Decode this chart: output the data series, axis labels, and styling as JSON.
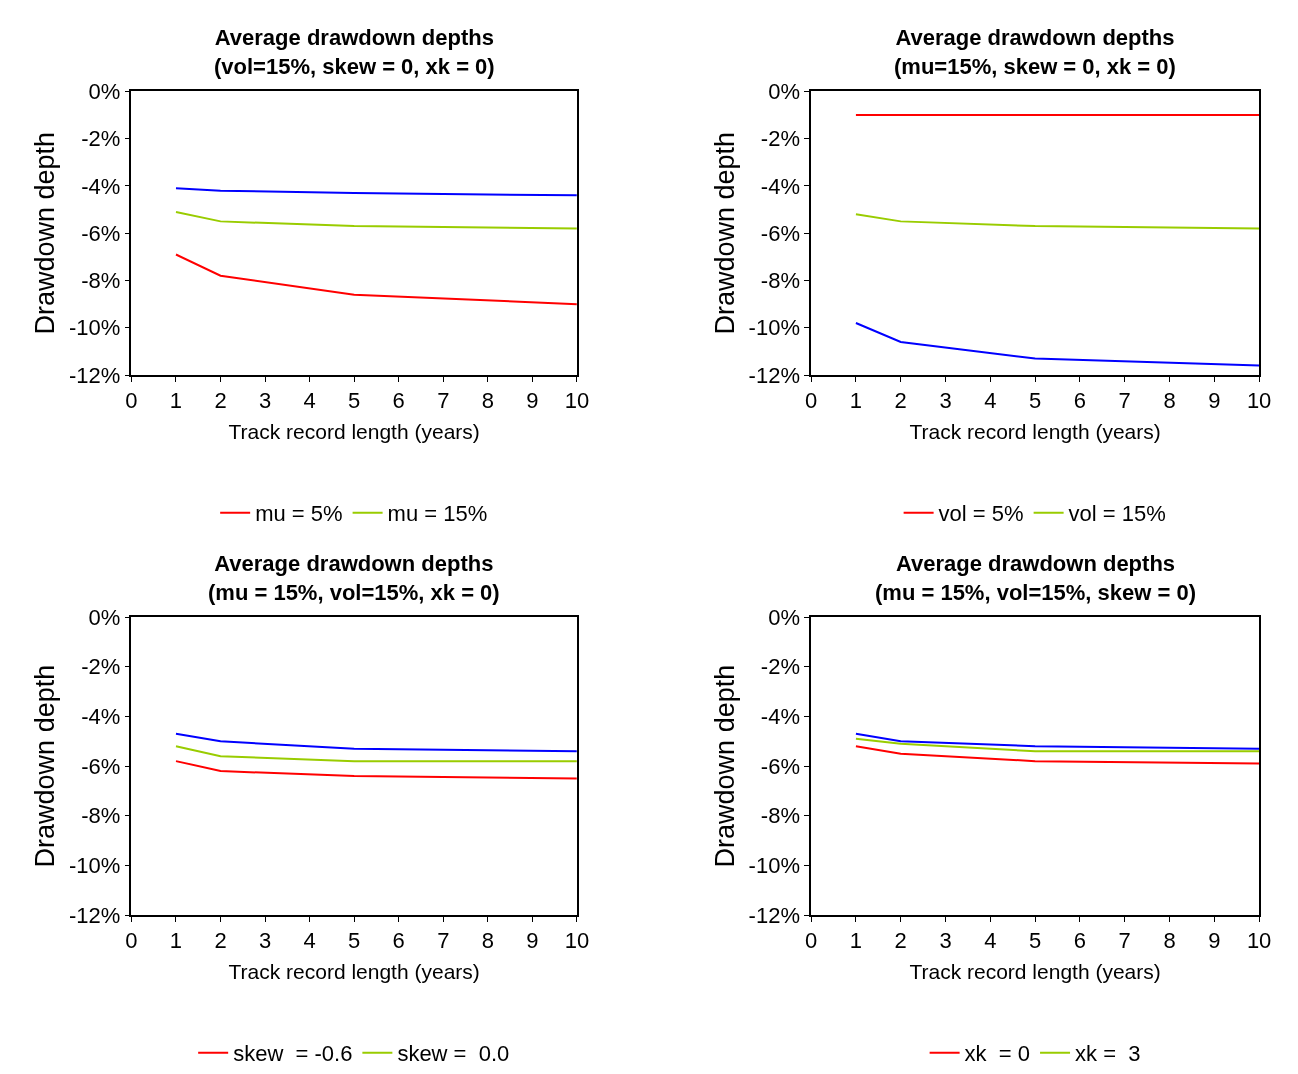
{
  "chart_data": [
    {
      "type": "line",
      "title": "Average drawdown depths\n(vol=15%, skew = 0, xk = 0)",
      "xlabel": "Track record length (years)",
      "ylabel": "Drawdown depth",
      "x": [
        1,
        2,
        5,
        10
      ],
      "xlim": [
        0,
        10
      ],
      "xticks": [
        0,
        1,
        2,
        3,
        4,
        5,
        6,
        7,
        8,
        9,
        10
      ],
      "ylim": [
        -12,
        0
      ],
      "yticks": [
        {
          "value": 0,
          "label": "0%"
        },
        {
          "value": -2,
          "label": "-2%"
        },
        {
          "value": -4,
          "label": "-4%"
        },
        {
          "value": -6,
          "label": "-6%"
        },
        {
          "value": -8,
          "label": "-8%"
        },
        {
          "value": -10,
          "label": "-10%"
        },
        {
          "value": -12,
          "label": "-12%"
        }
      ],
      "legend": "bottom",
      "series": [
        {
          "name": "mu = 5%",
          "color": "#ff0000",
          "values": [
            -6.9,
            -7.8,
            -8.6,
            -9.0
          ]
        },
        {
          "name": "mu = 15%",
          "color": "#99cc00",
          "values": [
            -5.1,
            -5.5,
            -5.7,
            -5.8
          ]
        },
        {
          "color": "#0000ff",
          "values": [
            -4.1,
            -4.2,
            -4.3,
            -4.4
          ]
        }
      ]
    },
    {
      "type": "line",
      "title": "Average drawdown depths\n(mu=15%, skew = 0, xk = 0)",
      "xlabel": "Track record length (years)",
      "ylabel": "Drawdown depth",
      "x": [
        1,
        2,
        5,
        10
      ],
      "xlim": [
        0,
        10
      ],
      "xticks": [
        0,
        1,
        2,
        3,
        4,
        5,
        6,
        7,
        8,
        9,
        10
      ],
      "ylim": [
        -12,
        0
      ],
      "yticks": [
        {
          "value": 0,
          "label": "0%"
        },
        {
          "value": -2,
          "label": "-2%"
        },
        {
          "value": -4,
          "label": "-4%"
        },
        {
          "value": -6,
          "label": "-6%"
        },
        {
          "value": -8,
          "label": "-8%"
        },
        {
          "value": -10,
          "label": "-10%"
        },
        {
          "value": -12,
          "label": "-12%"
        }
      ],
      "legend": "bottom",
      "series": [
        {
          "name": "vol = 5%",
          "color": "#ff0000",
          "values": [
            -1.0,
            -1.0,
            -1.0,
            -1.0
          ]
        },
        {
          "name": "vol = 15%",
          "color": "#99cc00",
          "values": [
            -5.2,
            -5.5,
            -5.7,
            -5.8
          ]
        },
        {
          "color": "#0000ff",
          "values": [
            -9.8,
            -10.6,
            -11.3,
            -11.6
          ]
        }
      ]
    },
    {
      "type": "line",
      "title": "Average drawdown depths\n(mu = 15%, vol=15%, xk = 0)",
      "xlabel": "Track record length (years)",
      "ylabel": "Drawdown depth",
      "x": [
        1,
        2,
        5,
        10
      ],
      "xlim": [
        0,
        10
      ],
      "xticks": [
        0,
        1,
        2,
        3,
        4,
        5,
        6,
        7,
        8,
        9,
        10
      ],
      "ylim": [
        -12,
        0
      ],
      "yticks": [
        {
          "value": 0,
          "label": "0%"
        },
        {
          "value": -2,
          "label": "-2%"
        },
        {
          "value": -4,
          "label": "-4%"
        },
        {
          "value": -6,
          "label": "-6%"
        },
        {
          "value": -8,
          "label": "-8%"
        },
        {
          "value": -10,
          "label": "-10%"
        },
        {
          "value": -12,
          "label": "-12%"
        }
      ],
      "legend": "bottom",
      "series": [
        {
          "name": "skew  = -0.6",
          "color": "#ff0000",
          "values": [
            -5.8,
            -6.2,
            -6.4,
            -6.5
          ]
        },
        {
          "name": "skew =  0.0",
          "color": "#99cc00",
          "values": [
            -5.2,
            -5.6,
            -5.8,
            -5.8
          ]
        },
        {
          "color": "#0000ff",
          "values": [
            -4.7,
            -5.0,
            -5.3,
            -5.4
          ]
        }
      ]
    },
    {
      "type": "line",
      "title": "Average drawdown depths\n(mu = 15%, vol=15%, skew = 0)",
      "xlabel": "Track record length (years)",
      "ylabel": "Drawdown depth",
      "x": [
        1,
        2,
        5,
        10
      ],
      "xlim": [
        0,
        10
      ],
      "xticks": [
        0,
        1,
        2,
        3,
        4,
        5,
        6,
        7,
        8,
        9,
        10
      ],
      "ylim": [
        -12,
        0
      ],
      "yticks": [
        {
          "value": 0,
          "label": "0%"
        },
        {
          "value": -2,
          "label": "-2%"
        },
        {
          "value": -4,
          "label": "-4%"
        },
        {
          "value": -6,
          "label": "-6%"
        },
        {
          "value": -8,
          "label": "-8%"
        },
        {
          "value": -10,
          "label": "-10%"
        },
        {
          "value": -12,
          "label": "-12%"
        }
      ],
      "legend": "bottom",
      "series": [
        {
          "name": "xk  = 0",
          "color": "#ff0000",
          "values": [
            -5.2,
            -5.5,
            -5.8,
            -5.9
          ]
        },
        {
          "name": "xk =  3",
          "color": "#99cc00",
          "values": [
            -4.9,
            -5.1,
            -5.4,
            -5.4
          ]
        },
        {
          "color": "#0000ff",
          "values": [
            -4.7,
            -5.0,
            -5.2,
            -5.3
          ]
        }
      ]
    }
  ]
}
